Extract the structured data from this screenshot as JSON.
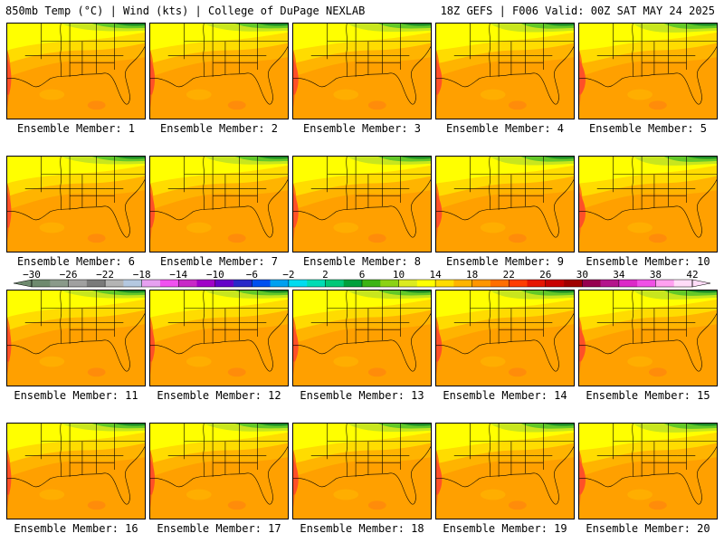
{
  "header": {
    "left": "850mb Temp (°C) | Wind (kts) | College of DuPage NEXLAB",
    "right": "18Z GEFS | F006 Valid: 00Z SAT MAY 24 2025"
  },
  "members": [
    "Ensemble Member: 1",
    "Ensemble Member: 2",
    "Ensemble Member: 3",
    "Ensemble Member: 4",
    "Ensemble Member: 5",
    "Ensemble Member: 6",
    "Ensemble Member: 7",
    "Ensemble Member: 8",
    "Ensemble Member: 9",
    "Ensemble Member: 10",
    "Ensemble Member: 11",
    "Ensemble Member: 12",
    "Ensemble Member: 13",
    "Ensemble Member: 14",
    "Ensemble Member: 15",
    "Ensemble Member: 16",
    "Ensemble Member: 17",
    "Ensemble Member: 18",
    "Ensemble Member: 19",
    "Ensemble Member: 20"
  ],
  "colorbar": {
    "tick_labels": [
      "−30",
      "−26",
      "−22",
      "−18",
      "−14",
      "−10",
      "−6",
      "−2",
      "2",
      "6",
      "10",
      "14",
      "18",
      "22",
      "26",
      "30",
      "34",
      "38",
      "42"
    ],
    "colors": [
      "#6e8a6e",
      "#8a9a8a",
      "#a0a0a0",
      "#7a7a7a",
      "#b4b4b4",
      "#b4c8e0",
      "#e6a0f0",
      "#f050f0",
      "#c828c8",
      "#a000c8",
      "#6400c8",
      "#2828c8",
      "#0050f0",
      "#00a0f0",
      "#00dcf0",
      "#00dcb4",
      "#00c878",
      "#00a03c",
      "#3cb414",
      "#8cd214",
      "#dceb1e",
      "#ffff00",
      "#ffdc00",
      "#ffb400",
      "#ff9600",
      "#ff6e00",
      "#ff3c00",
      "#e61400",
      "#c80000",
      "#a00000",
      "#960050",
      "#b4148c",
      "#dc28c8",
      "#f050e6",
      "#ffa0f0",
      "#ffdcf8"
    ],
    "colors_note": "36 color segments from -30 to 42 in 2°C steps"
  },
  "map_colors": {
    "dark_green": "#1e8c28",
    "green": "#64c828",
    "yellow_green": "#c8e61e",
    "yellow": "#ffff00",
    "gold": "#ffdc00",
    "light_orange": "#ffb400",
    "orange": "#ffa000",
    "dark_orange": "#ff7814",
    "red_orange": "#ff5028"
  }
}
